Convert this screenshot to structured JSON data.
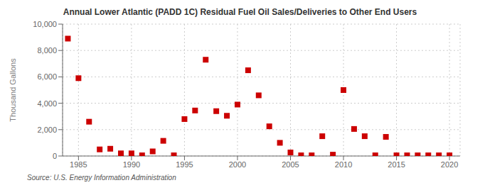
{
  "chart_data": {
    "type": "scatter",
    "title": "Annual Lower Atlantic (PADD 1C) Residual Fuel Oil Sales/Deliveries to Other End Users",
    "ylabel": "Thousand Gallons",
    "source": "Source: U.S. Energy Information Administration",
    "x": [
      1984,
      1985,
      1986,
      1987,
      1988,
      1989,
      1990,
      1991,
      1992,
      1993,
      1994,
      1995,
      1996,
      1997,
      1998,
      1999,
      2000,
      2001,
      2002,
      2003,
      2004,
      2005,
      2006,
      2007,
      2008,
      2009,
      2010,
      2011,
      2012,
      2013,
      2014,
      2015,
      2016,
      2017,
      2018,
      2019,
      2020
    ],
    "values": [
      8900,
      5900,
      2600,
      500,
      550,
      200,
      200,
      50,
      350,
      1150,
      50,
      2800,
      3450,
      7300,
      3400,
      3050,
      3900,
      6500,
      4600,
      2250,
      1000,
      270,
      50,
      50,
      1500,
      100,
      5000,
      2050,
      1500,
      50,
      1450,
      50,
      50,
      50,
      50,
      50,
      50
    ],
    "color": "#cc0000",
    "marker": "square",
    "grid": true,
    "xlim": [
      1983.5,
      2021
    ],
    "xticks": [
      1985,
      1990,
      1995,
      2000,
      2005,
      2010,
      2015,
      2020
    ],
    "ylim": [
      0,
      10000
    ],
    "yticks": [
      0,
      {
        "value": 2000,
        "label": "2,000"
      },
      {
        "value": 4000,
        "label": "4,000"
      },
      {
        "value": 6000,
        "label": "6,000"
      },
      {
        "value": 8000,
        "label": "8,000"
      },
      {
        "value": 10000,
        "label": "10,000"
      }
    ]
  }
}
